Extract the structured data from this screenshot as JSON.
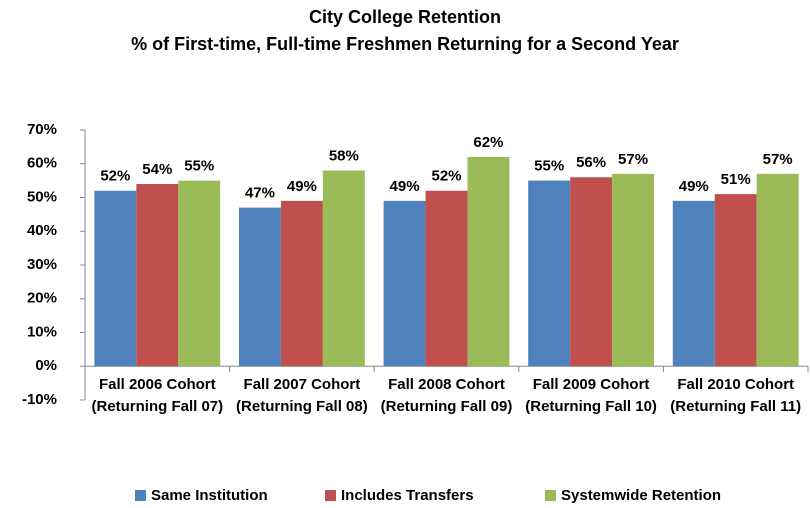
{
  "chart_data": {
    "type": "bar",
    "title": "City College Retention",
    "subtitle": "% of First-time, Full-time Freshmen Returning for a Second Year",
    "categories": [
      "Fall 2006 Cohort (Returning Fall 07)",
      "Fall 2007 Cohort (Returning Fall 08)",
      "Fall 2008 Cohort (Returning Fall 09)",
      "Fall 2009 Cohort (Returning Fall 10)",
      "Fall 2010 Cohort (Returning Fall 11)"
    ],
    "series": [
      {
        "name": "Same Institution",
        "color": "#4f81bd",
        "values": [
          52,
          47,
          49,
          55,
          49
        ],
        "value_labels": [
          "52%",
          "47%",
          "49%",
          "55%",
          "49%"
        ]
      },
      {
        "name": "Includes Transfers",
        "color": "#c0504d",
        "values": [
          54,
          49,
          52,
          56,
          51
        ],
        "value_labels": [
          "54%",
          "49%",
          "52%",
          "56%",
          "51%"
        ]
      },
      {
        "name": "Systemwide Retention",
        "color": "#9bbb59",
        "values": [
          55,
          58,
          62,
          57,
          57
        ],
        "value_labels": [
          "55%",
          "58%",
          "62%",
          "57%",
          "57%"
        ]
      }
    ],
    "ylim": [
      -10,
      70
    ],
    "yticks": [
      {
        "value": -10,
        "label": "-10%"
      },
      {
        "value": 0,
        "label": "0%"
      },
      {
        "value": 10,
        "label": "10%"
      },
      {
        "value": 20,
        "label": "20%"
      },
      {
        "value": 30,
        "label": "30%"
      },
      {
        "value": 40,
        "label": "40%"
      },
      {
        "value": 50,
        "label": "50%"
      },
      {
        "value": 60,
        "label": "60%"
      },
      {
        "value": 70,
        "label": "70%"
      }
    ],
    "grid": false,
    "legend": "bottom"
  }
}
